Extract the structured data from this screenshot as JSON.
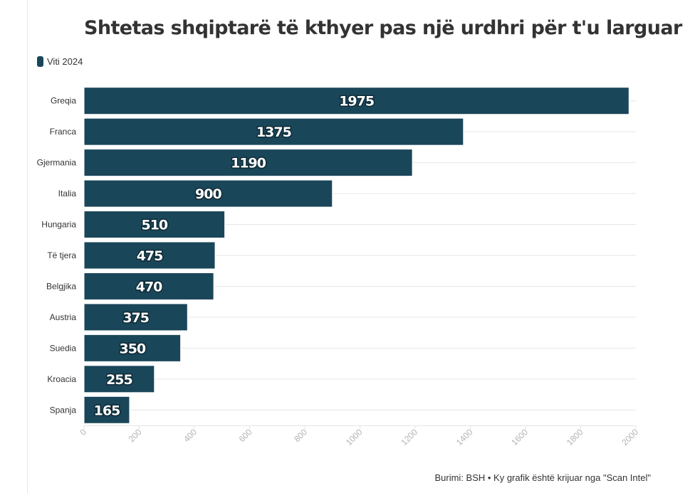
{
  "title": "Shtetas shqiptarë të kthyer pas një urdhri për t'u larguar",
  "legend": {
    "label": "Viti 2024",
    "color": "#1a4659"
  },
  "source": "Burimi: BSH • Ky grafik është krijuar nga \"Scan Intel\"",
  "chart_data": {
    "type": "bar",
    "orientation": "horizontal",
    "categories": [
      "Greqia",
      "Franca",
      "Gjermania",
      "Italia",
      "Hungaria",
      "Të tjera",
      "Belgjika",
      "Austria",
      "Suedia",
      "Kroacia",
      "Spanja"
    ],
    "series": [
      {
        "name": "Viti 2024",
        "values": [
          1975,
          1375,
          1190,
          900,
          510,
          475,
          470,
          375,
          350,
          255,
          165
        ]
      }
    ],
    "data_labels": [
      "1975",
      "1375",
      "1190",
      "900",
      "510",
      "475",
      "470",
      "375",
      "350",
      "255",
      "165"
    ],
    "xlim": [
      0,
      2000
    ],
    "xticks": [
      0,
      200,
      400,
      600,
      800,
      1000,
      1200,
      1400,
      1600,
      1800,
      2000
    ],
    "xtick_labels": [
      "0",
      "200",
      "400",
      "600",
      "800",
      "1000",
      "1200",
      "1400",
      "1600",
      "1800",
      "2000"
    ],
    "grid": true,
    "legend_position": "top-left",
    "colors": {
      "bar": "#1a4659",
      "grid": "#e6e6e6",
      "tick_text": "#b3b3b3",
      "label_text": "#333333"
    }
  }
}
